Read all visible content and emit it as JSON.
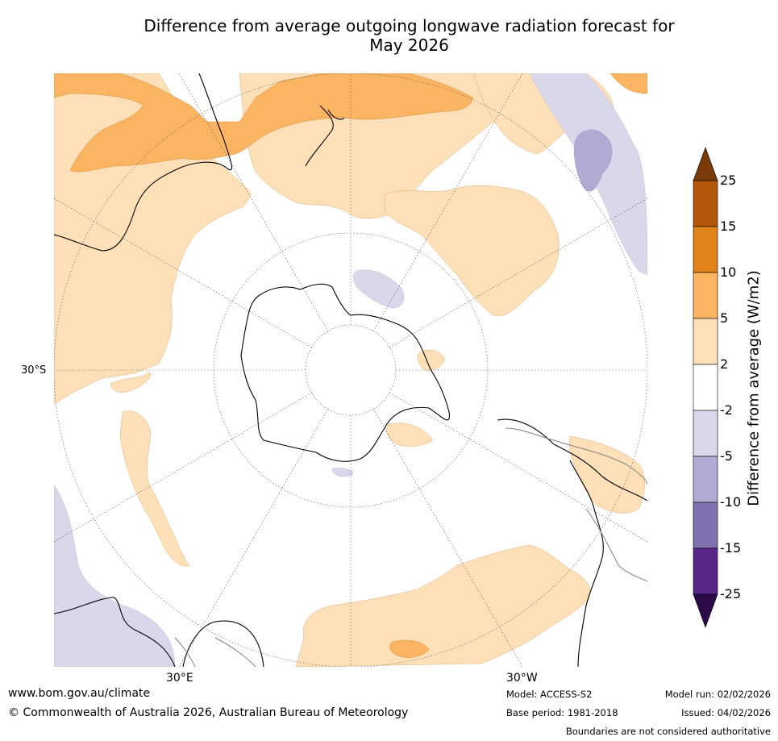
{
  "title_line1": "Difference from average outgoing longwave radiation forecast for",
  "title_line2": "May 2026",
  "colorbar": {
    "title": "Difference from average (W/m2)",
    "ticks": [
      "25",
      "15",
      "10",
      "5",
      "2",
      "-2",
      "-5",
      "-10",
      "-15",
      "-25"
    ],
    "colors": [
      "#7a3a08",
      "#b4560a",
      "#e08318",
      "#fbb562",
      "#fde0b8",
      "#ffffff",
      "#d8d8ea",
      "#b1aad2",
      "#8072b0",
      "#572588",
      "#2d0a4a"
    ]
  },
  "axes": {
    "lat_label": "30°S",
    "lon_label_left": "30°E",
    "lon_label_right": "30°W"
  },
  "footer": {
    "website": "www.bom.gov.au/climate",
    "copyright": "© Commonwealth of Australia 2026, Australian Bureau of Meteorology",
    "model": "Model: ACCESS-S2",
    "base_period": "Base period: 1981-2018",
    "model_run": "Model run: 02/02/2026",
    "issued": "Issued: 04/02/2026",
    "disclaimer": "Boundaries are not considered authoritative"
  }
}
